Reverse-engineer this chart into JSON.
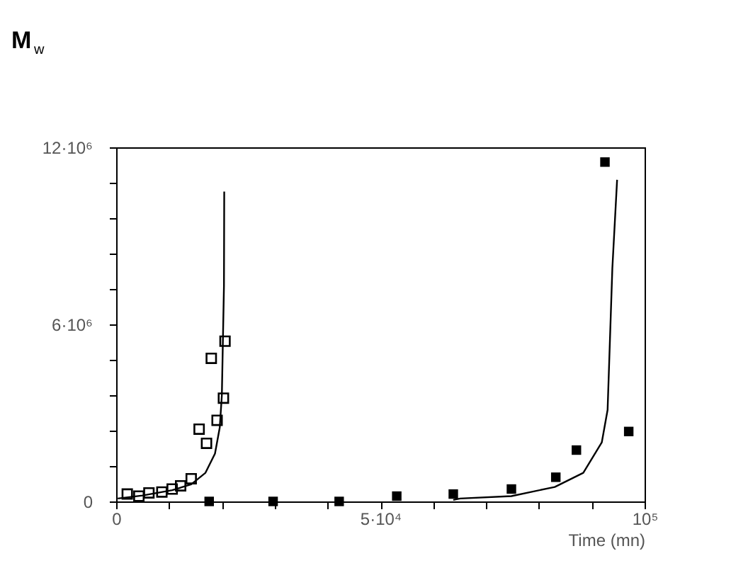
{
  "chart_data": {
    "type": "scatter",
    "ylabel": "M$_{w}$",
    "xlabel": "Time (mn)",
    "xlim": [
      0,
      100000
    ],
    "xticks": [
      0,
      {
        "value": 10000,
        "label": null
      },
      {
        "value": 20000,
        "label": null
      },
      {
        "value": 30000,
        "label": null
      },
      {
        "value": 40000,
        "label": null
      },
      {
        "value": 50000,
        "label": "5·10⁴"
      },
      {
        "value": 60000,
        "label": null
      },
      {
        "value": 70000,
        "label": null
      },
      {
        "value": 80000,
        "label": null
      },
      {
        "value": 90000,
        "label": null
      },
      {
        "value": 100000,
        "label": "10⁵"
      }
    ],
    "ylim": [
      0,
      12000000
    ],
    "yticks": [
      {
        "value": 0,
        "label": "0"
      },
      {
        "value": 1200000,
        "label": null
      },
      {
        "value": 2400000,
        "label": null
      },
      {
        "value": 3600000,
        "label": null
      },
      {
        "value": 4800000,
        "label": null
      },
      {
        "value": 6000000,
        "label": "6·10⁶"
      },
      {
        "value": 7200000,
        "label": null
      },
      {
        "value": 8400000,
        "label": null
      },
      {
        "value": 9600000,
        "label": null
      },
      {
        "value": 10800000,
        "label": null
      },
      {
        "value": 12000000,
        "label": "12·10⁶"
      }
    ],
    "grid": false,
    "marker": "square",
    "series": [
      {
        "color": "#000000",
        "x": [
          2100,
          4300,
          6200,
          8650,
          10600,
          12200,
          14200,
          15700,
          17100,
          18000,
          19100,
          20300,
          20600
        ],
        "values": [
          250000,
          180000,
          290000,
          320000,
          420000,
          530000,
          770000,
          2450000,
          1970000,
          4850000,
          2750000,
          3500000,
          5430000
        ]
      },
      {
        "color": "#000000",
        "x": [
          17600,
          29700,
          42200,
          53100,
          63800,
          74800,
          83200,
          87100,
          92500,
          97000
        ],
        "values": [
          0,
          0,
          0,
          180000,
          250000,
          420000,
          820000,
          1740000,
          11500000,
          2370000
        ]
      },
      {
        "type": "line",
        "marker": "none",
        "line_style": "solid",
        "color": "#000000",
        "x": [
          300,
          5000,
          10600,
          14200,
          16900,
          18700,
          19600,
          20000,
          20400,
          20450
        ],
        "values": [
          100000,
          200000,
          380000,
          580000,
          970000,
          1620000,
          2500000,
          3600000,
          7300000,
          10500000
        ]
      },
      {
        "type": "line",
        "marker": "none",
        "line_style": "solid",
        "color": "#000000",
        "x": [
          63800,
          65100,
          74800,
          83000,
          88400,
          91900,
          93000,
          93900,
          94800
        ],
        "values": [
          50000,
          100000,
          180000,
          490000,
          970000,
          2000000,
          3100000,
          7900000,
          10900000
        ]
      }
    ]
  }
}
